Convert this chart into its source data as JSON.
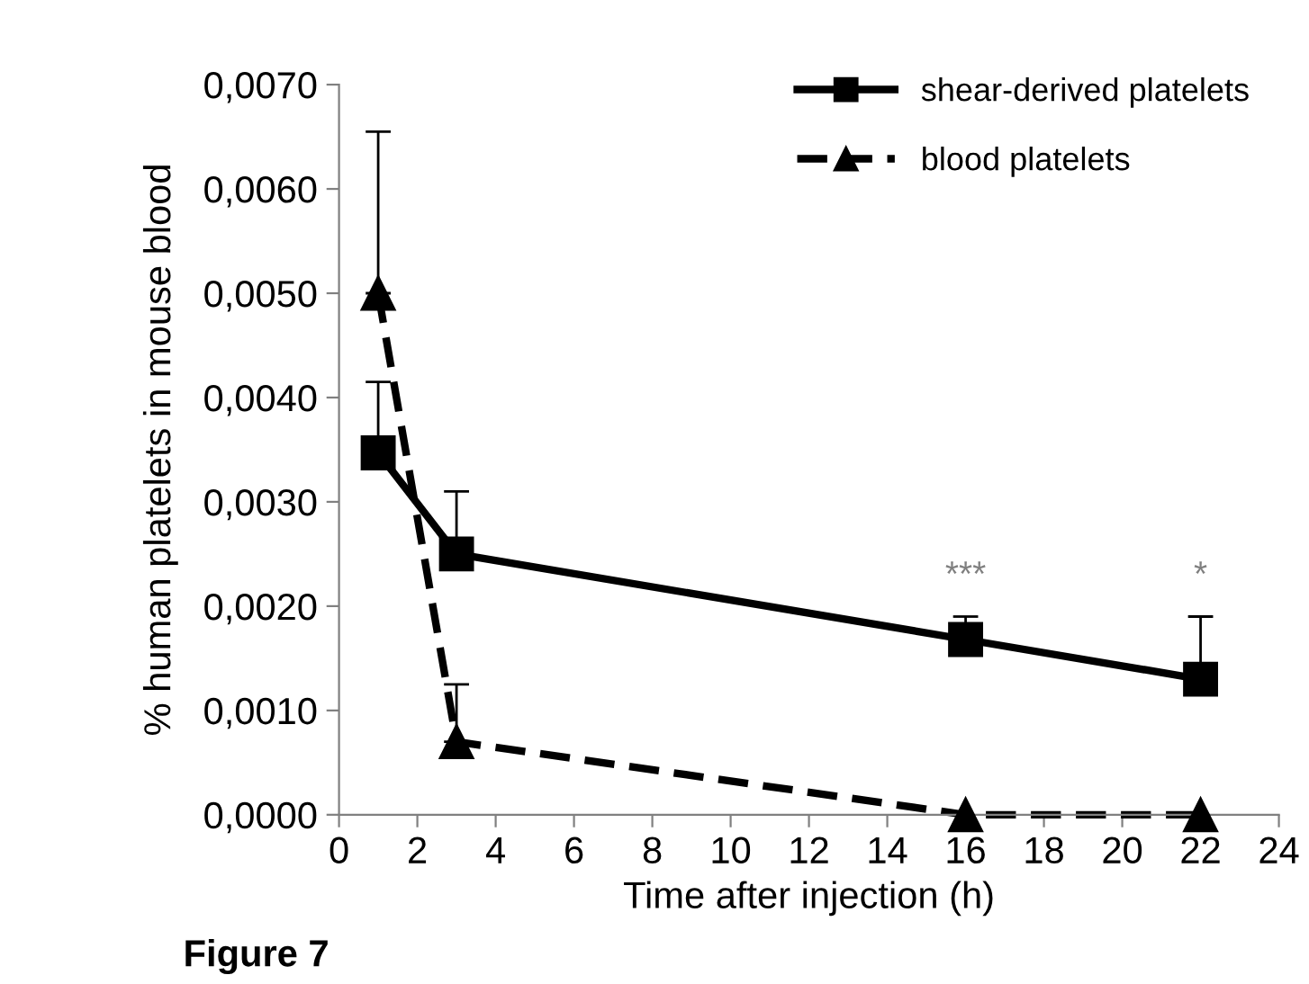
{
  "chart_data": {
    "type": "line",
    "xlabel": "Time after injection (h)",
    "ylabel": "% human platelets in mouse blood",
    "x": [
      1,
      3,
      16,
      22
    ],
    "series": [
      {
        "name": "shear-derived platelets",
        "color": "#000000",
        "marker": "square",
        "line_style": "solid",
        "values": [
          0.00347,
          0.0025,
          0.00168,
          0.0013
        ],
        "errors": [
          [
            0.00347,
            0.00415
          ],
          [
            0.0025,
            0.0031
          ],
          [
            0.00168,
            0.0019
          ],
          [
            0.0013,
            0.0019
          ]
        ]
      },
      {
        "name": "blood platelets",
        "color": "#000000",
        "marker": "triangle",
        "line_style": "dashed",
        "values": [
          0.005,
          0.0007,
          0.0,
          0.0
        ],
        "errors": [
          [
            0.005,
            0.00655
          ],
          [
            0.0007,
            0.00125
          ],
          null,
          null
        ]
      }
    ],
    "xlim": [
      0,
      24
    ],
    "xticks": [
      0,
      2,
      4,
      6,
      8,
      10,
      12,
      14,
      16,
      18,
      20,
      22,
      24
    ],
    "ylim": [
      0,
      0.007
    ],
    "yticks": [
      {
        "value": 0,
        "label": "0,0000"
      },
      {
        "value": 0.001,
        "label": "0,0010"
      },
      {
        "value": 0.002,
        "label": "0,0020"
      },
      {
        "value": 0.003,
        "label": "0,0030"
      },
      {
        "value": 0.004,
        "label": "0,0040"
      },
      {
        "value": 0.005,
        "label": "0,0050"
      },
      {
        "value": 0.006,
        "label": "0,0060"
      },
      {
        "value": 0.007,
        "label": "0,0070"
      }
    ],
    "annotations": [
      {
        "text": "***",
        "x": 16,
        "y": 0.0019
      },
      {
        "text": "*",
        "x": 22,
        "y": 0.0019
      },
      "Figure 7"
    ],
    "grid": false,
    "legend": "top right"
  }
}
